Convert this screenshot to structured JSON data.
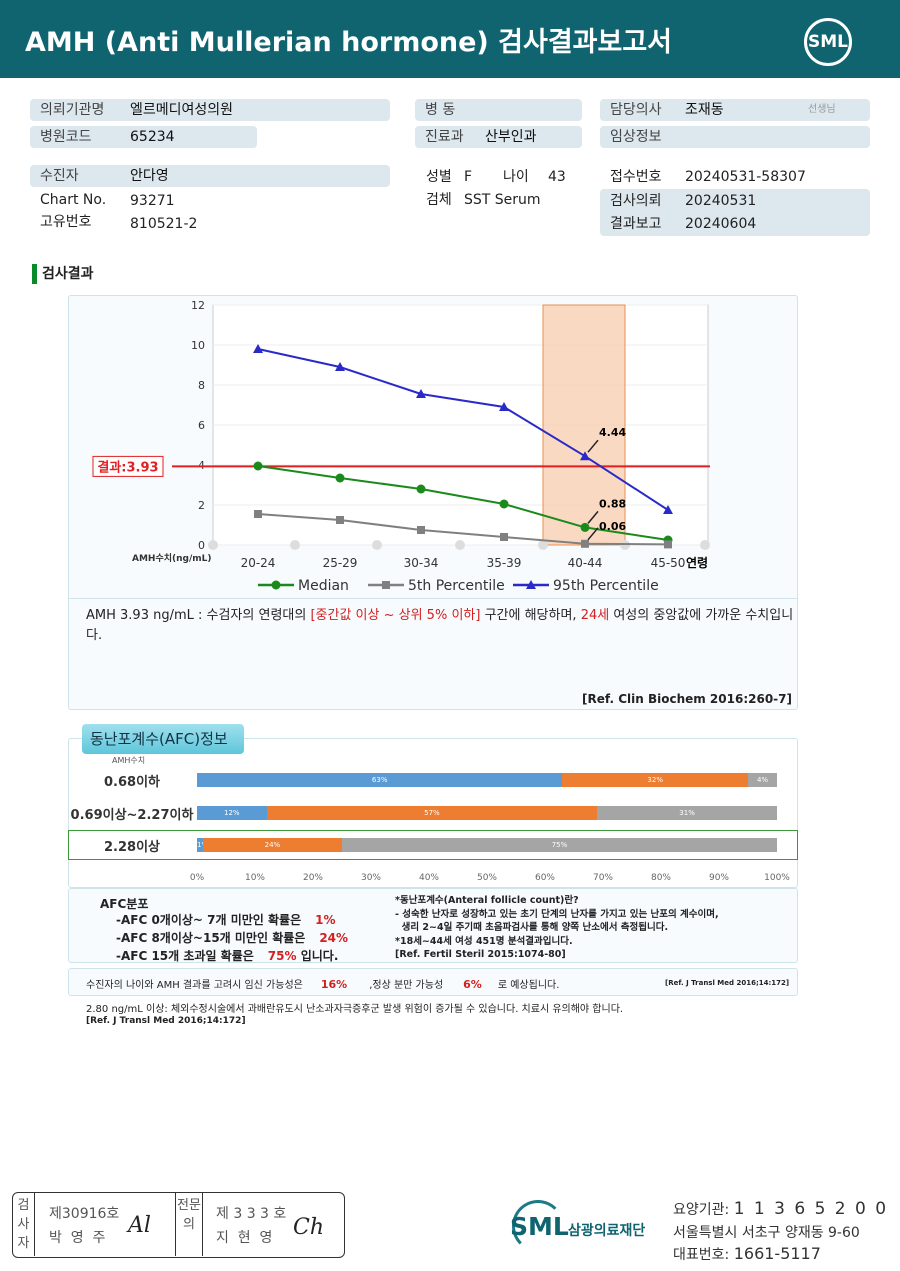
{
  "header": {
    "title": "AMH (Anti Mullerian hormone) 검사결과보고서",
    "logo": "SML"
  },
  "info": {
    "institution": {
      "label": "의뢰기관명",
      "value": "엘르메디여성의원"
    },
    "hospital_code": {
      "label": "병원코드",
      "value": "65234"
    },
    "patient": {
      "label": "수진자",
      "value": "안다영"
    },
    "chart_no": {
      "label": "Chart No.",
      "value": "93271"
    },
    "unique_no": {
      "label": "고유번호",
      "value": "810521-2"
    },
    "ward": {
      "label": "병  동",
      "value": ""
    },
    "department": {
      "label": "진료과",
      "value": "산부인과"
    },
    "sex": {
      "label": "성별",
      "value": "F"
    },
    "age": {
      "label": "나이",
      "value": "43"
    },
    "specimen": {
      "label": "검체",
      "value": "SST Serum"
    },
    "doctor": {
      "label": "담당의사",
      "value": "조재동",
      "suffix": "선생님"
    },
    "clinical": {
      "label": "임상정보",
      "value": ""
    },
    "receipt_no": {
      "label": "접수번호",
      "value": "20240531-58307"
    },
    "request_date": {
      "label": "검사의뢰",
      "value": "20240531"
    },
    "report_date": {
      "label": "결과보고",
      "value": "20240604"
    }
  },
  "section_title": "검사결과",
  "chart_data": {
    "type": "line",
    "categories": [
      "20-24",
      "25-29",
      "30-34",
      "35-39",
      "40-44",
      "45-50"
    ],
    "xlabel": "연령",
    "ylabel": "AMH수치(ng/mL)",
    "ylim": [
      0,
      12
    ],
    "yticks": [
      0,
      2,
      4,
      6,
      8,
      10,
      12
    ],
    "series": [
      {
        "name": "Median",
        "color": "#1a8a1a",
        "marker": "circle",
        "values": [
          3.95,
          3.35,
          2.8,
          2.05,
          0.88,
          0.25
        ]
      },
      {
        "name": "5th Percentile",
        "color": "#808080",
        "marker": "square",
        "values": [
          1.55,
          1.25,
          0.75,
          0.4,
          0.06,
          0.03
        ]
      },
      {
        "name": "95th Percentile",
        "color": "#2a2ac8",
        "marker": "triangle",
        "values": [
          9.8,
          8.9,
          7.55,
          6.9,
          4.44,
          1.75
        ]
      }
    ],
    "annotations": [
      "4.44",
      "0.88",
      "0.06"
    ],
    "result_line": {
      "label": "결과:3.93",
      "value": 3.93,
      "color": "#e02020"
    },
    "highlight_category": "40-44",
    "legend": "bottom",
    "grid": true
  },
  "interpretation": {
    "p1": "AMH  3.93 ng/mL : 수검자의 연령대의 ",
    "p2": "[중간값 이상 ~ 상위 5% 이하]",
    "p3": " 구간에 해당하며, ",
    "p4": "24세",
    "p5": " 여성의 중앙값에 가까운 수치입니다.",
    "ref": "[Ref. Clin Biochem 2016:260-7]"
  },
  "afc": {
    "title": "동난포계수(AFC)정보",
    "axis_label": "AMH수치",
    "colors": [
      "#5b9bd5",
      "#ed7d31",
      "#a5a5a5"
    ],
    "ticks": [
      "0%",
      "10%",
      "20%",
      "30%",
      "40%",
      "50%",
      "60%",
      "70%",
      "80%",
      "90%",
      "100%"
    ],
    "rows": [
      {
        "label": "0.68이하",
        "values": [
          63,
          32,
          4
        ],
        "texts": [
          "63%",
          "32%",
          "4%"
        ]
      },
      {
        "label": "0.69이상~2.27이하",
        "values": [
          12,
          57,
          31
        ],
        "texts": [
          "12%",
          "57%",
          "31%"
        ]
      },
      {
        "label": "2.28이상",
        "values": [
          1,
          24,
          75
        ],
        "texts": [
          "1%",
          "24%",
          "75%"
        ],
        "highlighted": true
      }
    ],
    "dist_title": "AFC분포",
    "dist": [
      {
        "text": "-AFC 0개이상~ 7개 미만인 확률은",
        "pct": "1%",
        "tail": ""
      },
      {
        "text": "-AFC 8개이상~15개 미만인 확률은",
        "pct": "24%",
        "tail": ""
      },
      {
        "text": "-AFC 15개 초과일 확률은",
        "pct": "75%",
        "tail": " 입니다."
      }
    ],
    "note_title": "*동난포계수(Anteral follicle count)란?",
    "note1": "- 성숙한 난자로 성장하고 있는 초기 단계의 난자를 가지고 있는 난포의 계수이며,",
    "note2": "  생리 2~4일 주기때 초음파검사를 통해 양쪽 난소에서 측정됩니다.",
    "note3": "*18세~44세 여성 451명 분석결과입니다.",
    "note_ref": "[Ref. Fertil Steril 2015:1074-80]"
  },
  "pregnancy": {
    "t1": "수진자의  나이와 AMH  결과를  고려시  임신  가능성은",
    "p1": "16%",
    "t2": ",정상  분만  가능성",
    "p2": "6%",
    "t3": "로  예상됩니다.",
    "ref": "[Ref. J Transl Med 2016;14:172]"
  },
  "warning": {
    "text": "2.80  ng/mL  이상: 체외수정시술에서 과배란유도시 난소과자극증후군 발생 위험이 증가될 수 있습니다. 치료시 유의해야 합니다.",
    "ref": "[Ref. J Transl Med 2016;14:172]"
  },
  "signature": {
    "l1": "검사자",
    "n1": "제30916호",
    "name1": "박  영  주",
    "l2": "전문의",
    "n2": "제 3 3 3 호",
    "name2": "지  현  영"
  },
  "footer": {
    "logo": "SML",
    "org": "삼광의료재단",
    "code_label": "요양기관:",
    "code": "1 1 3 6 5 2 0 0",
    "address": "서울특별시 서초구 양재동 9-60",
    "phone_label": "대표번호:",
    "phone": "1661-5117"
  }
}
